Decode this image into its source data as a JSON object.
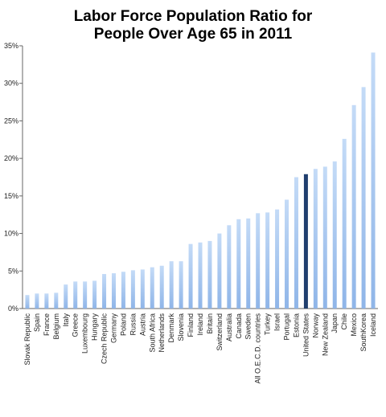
{
  "chart_data": {
    "type": "bar",
    "title_line1": "Labor Force Population Ratio for",
    "title_line2": "People Over Age 65 in 2011",
    "xlabel": "",
    "ylabel": "",
    "ylim": [
      0,
      35
    ],
    "yticks": [
      "0%",
      "5%",
      "10%",
      "15%",
      "20%",
      "25%",
      "30%",
      "35%"
    ],
    "grid": false,
    "highlight_category": "United States",
    "colors": {
      "bar": "#8fb5e8",
      "bar_light": "#c4dbf7",
      "highlight": "#1f3e6e"
    },
    "categories": [
      "Slovak Republic",
      "Spain",
      "France",
      "Belgium",
      "Italy",
      "Greece",
      "Luxembourg",
      "Hungary",
      "Czech Republic",
      "Germany",
      "Poland",
      "Russia",
      "Austria",
      "South Africa",
      "Netherlands",
      "Denmark",
      "Slovenia",
      "Finland",
      "Ireland",
      "Britain",
      "Switzerland",
      "Australia",
      "Canada",
      "Sweden",
      "All O.E.C.D. countries",
      "Turkey",
      "Israel",
      "Portugal",
      "Estonia",
      "United States",
      "Norway",
      "New Zealand",
      "Japan",
      "Chile",
      "Mexico",
      "SouthKorea",
      "Iceland"
    ],
    "values": [
      1.8,
      2.0,
      2.0,
      2.1,
      3.2,
      3.6,
      3.6,
      3.7,
      4.6,
      4.7,
      4.9,
      5.1,
      5.2,
      5.5,
      5.7,
      6.3,
      6.3,
      8.6,
      8.8,
      9.0,
      10.0,
      11.1,
      11.9,
      12.0,
      12.7,
      12.8,
      13.2,
      14.5,
      17.5,
      17.9,
      18.6,
      18.9,
      19.6,
      22.6,
      27.1,
      29.5,
      34.1
    ]
  }
}
